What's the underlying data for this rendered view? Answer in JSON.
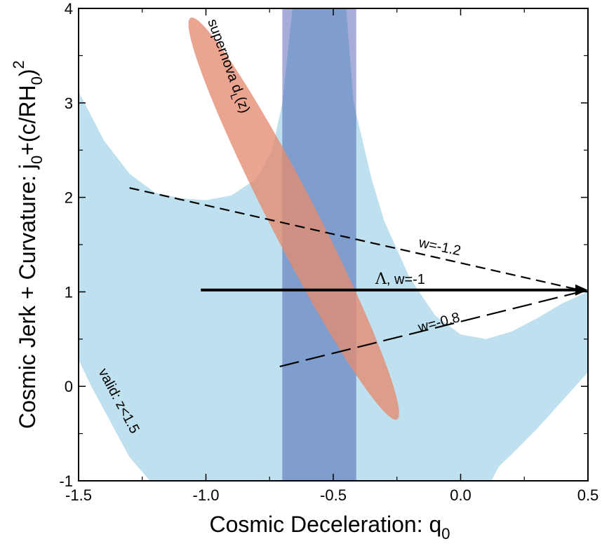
{
  "chart_data": {
    "type": "area",
    "xlabel_main": "Cosmic Deceleration: q",
    "xlabel_sub": "0",
    "ylabel_main": "Cosmic Jerk + Curvature: j",
    "ylabel_rest": "+(c/RH",
    "ylabel_sub0": "0",
    "ylabel_sub1": "0",
    "ylabel_close": ")",
    "ylabel_sup": "2",
    "xlim": [
      -1.5,
      0.5
    ],
    "ylim": [
      -1,
      4
    ],
    "x_ticks": [
      -1.5,
      -1.0,
      -0.5,
      0.0,
      0.5
    ],
    "x_tick_labels": [
      "-1.5",
      "-1.0",
      "-0.5",
      "0.0",
      "0.5"
    ],
    "y_ticks": [
      -1,
      0,
      1,
      2,
      3,
      4
    ],
    "y_tick_labels": [
      "-1",
      "0",
      "1",
      "2",
      "3",
      "4"
    ],
    "colors": {
      "valid_region": "#bfe0ee",
      "bao_band_light": "#a7acd8",
      "bao_band_dark": "#7f9ecd",
      "supernova_ellipse": "#e48a70",
      "lines": "#000000"
    },
    "valid_region": {
      "label": "valid: z<1.5",
      "upper_boundary": [
        {
          "x": -1.5,
          "y": 3.12
        },
        {
          "x": -1.4,
          "y": 2.6
        },
        {
          "x": -1.3,
          "y": 2.25
        },
        {
          "x": -1.2,
          "y": 2.05
        },
        {
          "x": -1.1,
          "y": 1.99
        },
        {
          "x": -1.0,
          "y": 1.97
        },
        {
          "x": -0.9,
          "y": 2.02
        },
        {
          "x": -0.8,
          "y": 2.2
        },
        {
          "x": -0.74,
          "y": 2.5
        },
        {
          "x": -0.7,
          "y": 3.0
        },
        {
          "x": -0.66,
          "y": 4.0
        },
        {
          "x": -0.45,
          "y": 4.0
        },
        {
          "x": -0.42,
          "y": 3.0
        },
        {
          "x": -0.35,
          "y": 2.2
        },
        {
          "x": -0.3,
          "y": 1.75
        },
        {
          "x": -0.2,
          "y": 1.15
        },
        {
          "x": -0.1,
          "y": 0.75
        },
        {
          "x": 0.0,
          "y": 0.55
        },
        {
          "x": 0.1,
          "y": 0.5
        },
        {
          "x": 0.2,
          "y": 0.58
        },
        {
          "x": 0.3,
          "y": 0.72
        },
        {
          "x": 0.4,
          "y": 0.88
        },
        {
          "x": 0.5,
          "y": 1.0
        }
      ],
      "lower_boundary": [
        {
          "x": 0.5,
          "y": 0.15
        },
        {
          "x": 0.4,
          "y": -0.15
        },
        {
          "x": 0.3,
          "y": -0.45
        },
        {
          "x": 0.2,
          "y": -0.72
        },
        {
          "x": 0.15,
          "y": -0.85
        },
        {
          "x": 0.12,
          "y": -1.0
        },
        {
          "x": -1.22,
          "y": -1.0
        },
        {
          "x": -1.3,
          "y": -0.75
        },
        {
          "x": -1.4,
          "y": -0.25
        },
        {
          "x": -1.45,
          "y": 0.0
        },
        {
          "x": -1.5,
          "y": 0.28
        }
      ]
    },
    "bao_band": {
      "q0_range": [
        -0.7,
        -0.41
      ]
    },
    "supernova": {
      "label_main": "supernova d",
      "label_sub": "L",
      "label_tail": "(z)",
      "center": {
        "x": -0.65,
        "y": 1.78
      },
      "endpoint_a": {
        "x": -1.06,
        "y": 3.9
      },
      "endpoint_b": {
        "x": -0.25,
        "y": -0.35
      },
      "half_width_q0": 0.105
    },
    "series": [
      {
        "name": "Λ, w=-1",
        "style": "solid-thick",
        "x": [
          -1.02,
          0.5
        ],
        "y": [
          1.02,
          1.02
        ]
      },
      {
        "name": "w=-1.2",
        "style": "dashed-short",
        "x": [
          -1.3,
          0.5
        ],
        "y": [
          2.1,
          1.0
        ]
      },
      {
        "name": "w=-0.8",
        "style": "dashed-long",
        "x": [
          -0.71,
          0.5
        ],
        "y": [
          0.21,
          1.02
        ]
      }
    ],
    "annotations": {
      "lambda_symbol": "Λ",
      "lambda_text": ", w=-1",
      "w12": "w=-1.2",
      "w08": "w=-0.8"
    },
    "grid": false,
    "legend": "none"
  }
}
